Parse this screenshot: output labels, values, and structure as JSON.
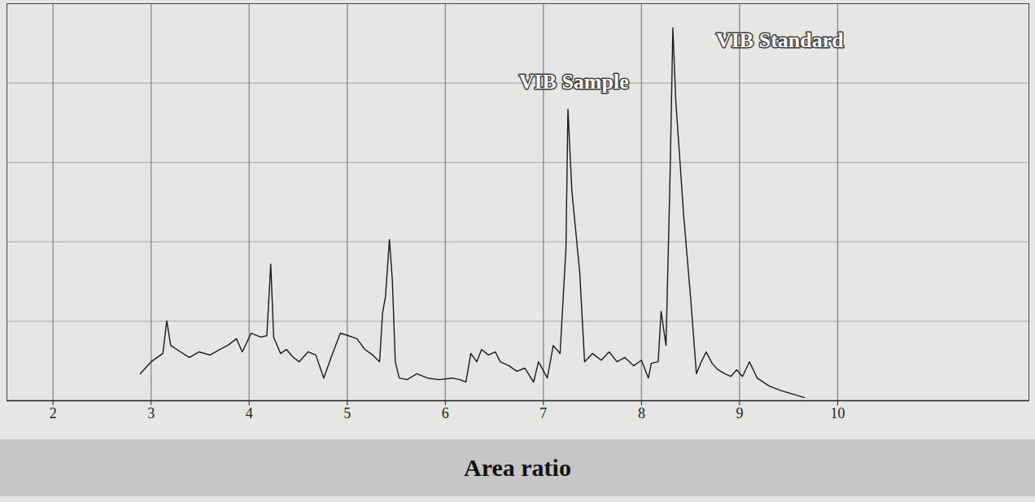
{
  "chart_data": {
    "type": "line",
    "caption": "Area ratio",
    "x": [
      2.89,
      3.0,
      3.12,
      3.16,
      3.2,
      3.3,
      3.39,
      3.49,
      3.6,
      3.7,
      3.78,
      3.87,
      3.93,
      4.02,
      4.12,
      4.18,
      4.22,
      4.25,
      4.32,
      4.38,
      4.45,
      4.51,
      4.6,
      4.68,
      4.76,
      4.85,
      4.93,
      5.01,
      5.1,
      5.18,
      5.26,
      5.33,
      5.36,
      5.39,
      5.43,
      5.46,
      5.49,
      5.53,
      5.61,
      5.71,
      5.82,
      5.94,
      6.07,
      6.15,
      6.21,
      6.26,
      6.32,
      6.37,
      6.44,
      6.51,
      6.56,
      6.65,
      6.73,
      6.81,
      6.9,
      6.95,
      7.04,
      7.1,
      7.17,
      7.23,
      7.25,
      7.29,
      7.37,
      7.42,
      7.5,
      7.59,
      7.67,
      7.75,
      7.83,
      7.92,
      8.0,
      8.07,
      8.1,
      8.17,
      8.2,
      8.25,
      8.29,
      8.32,
      8.35,
      8.43,
      8.5,
      8.56,
      8.61,
      8.66,
      8.72,
      8.78,
      8.85,
      8.91,
      8.97,
      9.03,
      9.1,
      9.18,
      9.3,
      9.43,
      9.55,
      9.66
    ],
    "values": [
      6.8,
      9.8,
      11.9,
      20.1,
      13.9,
      12.3,
      10.9,
      12.3,
      11.5,
      12.9,
      13.9,
      15.6,
      12.3,
      17.0,
      16.0,
      16.4,
      34.4,
      16.0,
      11.9,
      12.9,
      10.9,
      9.8,
      12.3,
      11.5,
      5.7,
      11.9,
      17.0,
      16.4,
      15.6,
      12.9,
      11.5,
      9.8,
      22.1,
      26.2,
      40.6,
      30.3,
      9.8,
      5.7,
      5.3,
      6.8,
      5.7,
      5.3,
      5.7,
      5.3,
      4.7,
      11.9,
      9.8,
      12.9,
      11.5,
      12.3,
      9.8,
      8.8,
      7.4,
      8.2,
      4.7,
      9.8,
      5.7,
      13.9,
      11.9,
      38.5,
      73.4,
      52.9,
      32.4,
      9.8,
      11.9,
      10.2,
      12.3,
      9.8,
      10.9,
      8.8,
      10.2,
      5.7,
      9.4,
      9.8,
      22.5,
      13.9,
      54.9,
      93.9,
      75.4,
      46.7,
      26.2,
      6.8,
      9.8,
      12.3,
      9.4,
      7.8,
      6.8,
      6.1,
      7.8,
      6.1,
      9.8,
      5.7,
      3.7,
      2.5,
      1.6,
      0.8
    ],
    "color": "#1a1a1a",
    "xlim": [
      1.53,
      11.95
    ],
    "xticks": [
      2,
      3,
      4,
      5,
      6,
      7,
      8,
      9,
      10
    ],
    "ylim": [
      0,
      100
    ],
    "yticks": [
      0,
      20,
      40,
      60,
      80,
      100
    ],
    "grid": true,
    "tick_labels": "x",
    "annotations": [
      {
        "text": "VIB Sample",
        "x": 7.31,
        "y": 80.3
      },
      {
        "text": "VIB Standard",
        "x": 9.41,
        "y": 90.8
      }
    ]
  }
}
